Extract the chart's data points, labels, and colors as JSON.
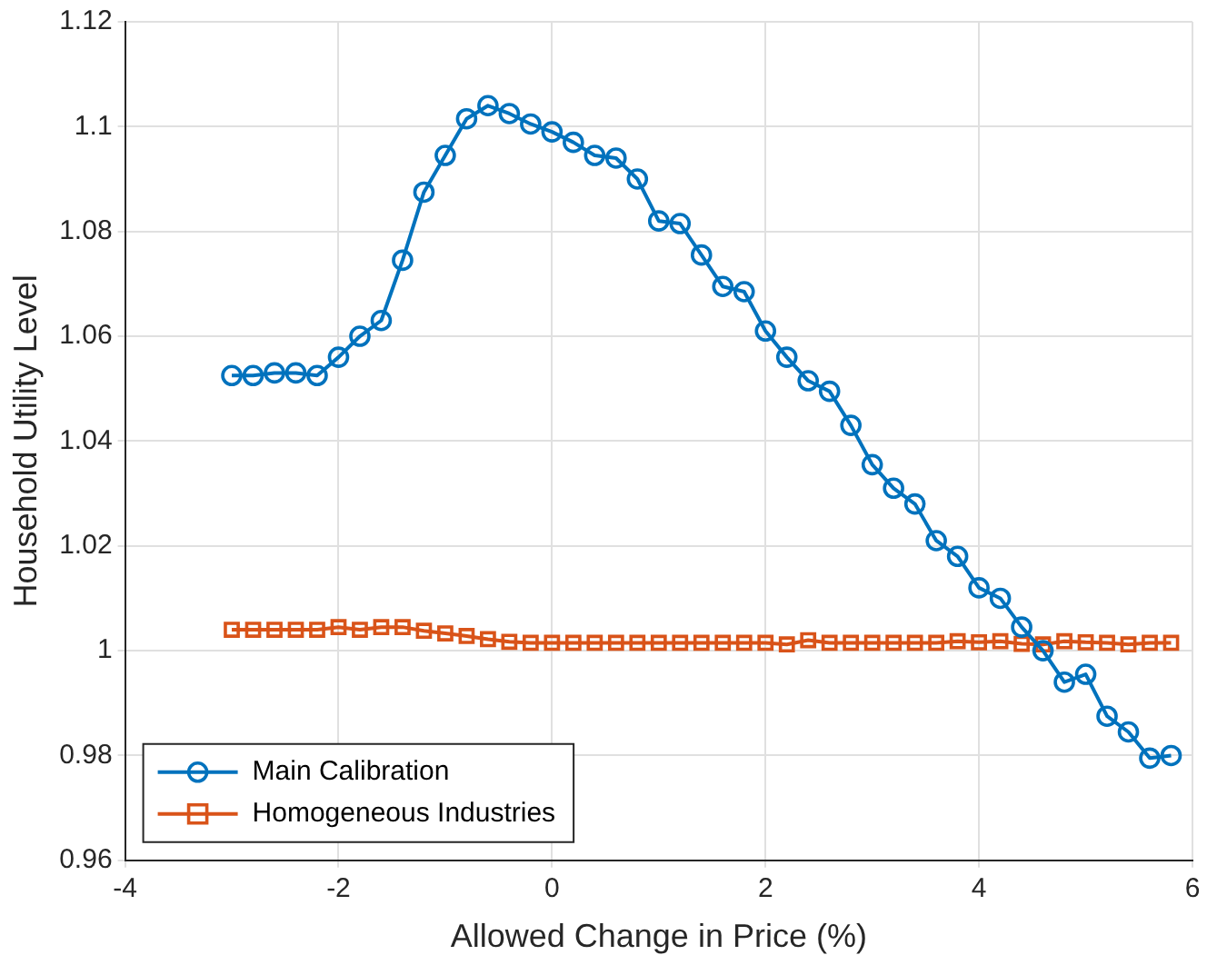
{
  "chart_data": {
    "type": "line",
    "xlabel": "Allowed Change in Price (%)",
    "ylabel": "Household Utility Level",
    "x": [
      -3,
      -2.8,
      -2.6,
      -2.4,
      -2.2,
      -2,
      -1.8,
      -1.6,
      -1.4,
      -1.2,
      -1,
      -0.8,
      -0.6,
      -0.4,
      -0.2,
      0,
      0.2,
      0.4,
      0.6,
      0.8,
      1,
      1.2,
      1.4,
      1.6,
      1.8,
      2,
      2.2,
      2.4,
      2.6,
      2.8,
      3,
      3.2,
      3.4,
      3.6,
      3.8,
      4,
      4.2,
      4.4,
      4.6,
      4.8,
      5,
      5.2,
      5.4,
      5.6,
      5.8
    ],
    "series": [
      {
        "name": "Main Calibration",
        "color": "#0072bd",
        "marker": "circle",
        "values": [
          1.0525,
          1.0525,
          1.053,
          1.053,
          1.0525,
          1.056,
          1.06,
          1.063,
          1.0745,
          1.0875,
          1.0945,
          1.1015,
          1.104,
          1.1025,
          1.1005,
          1.099,
          1.097,
          1.0945,
          1.094,
          1.09,
          1.082,
          1.0815,
          1.0755,
          1.0695,
          1.0685,
          1.061,
          1.056,
          1.0515,
          1.0495,
          1.043,
          1.0355,
          1.031,
          1.028,
          1.021,
          1.018,
          1.012,
          1.01,
          1.0045,
          1.0,
          0.994,
          0.9955,
          0.9875,
          0.9845,
          0.9795,
          0.98
        ]
      },
      {
        "name": "Homogeneous Industries",
        "color": "#d95319",
        "marker": "square",
        "values": [
          1.004,
          1.004,
          1.004,
          1.004,
          1.004,
          1.0045,
          1.004,
          1.0045,
          1.0045,
          1.0038,
          1.0033,
          1.0028,
          1.0022,
          1.0017,
          1.0015,
          1.0015,
          1.0015,
          1.0015,
          1.0015,
          1.0015,
          1.0015,
          1.0015,
          1.0015,
          1.0015,
          1.0015,
          1.0015,
          1.0012,
          1.002,
          1.0015,
          1.0015,
          1.0015,
          1.0015,
          1.0015,
          1.0015,
          1.0018,
          1.0016,
          1.0018,
          1.0013,
          1.0012,
          1.0018,
          1.0016,
          1.0015,
          1.0012,
          1.0015,
          1.0015
        ]
      }
    ],
    "xlim": [
      -4,
      6
    ],
    "xticks": [
      -4,
      -2,
      0,
      2,
      4,
      6
    ],
    "ylim": [
      0.96,
      1.12
    ],
    "yticks": [
      0.96,
      0.98,
      1,
      1.02,
      1.04,
      1.06,
      1.08,
      1.1,
      1.12
    ],
    "grid": true,
    "legend": "bottom left",
    "line_style": "solid"
  }
}
